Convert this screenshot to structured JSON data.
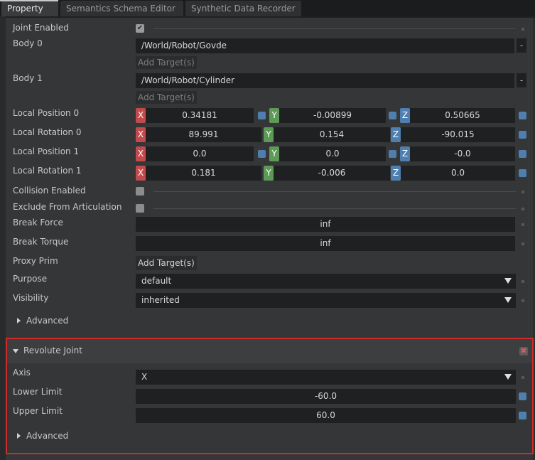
{
  "tabs": [
    {
      "label": "Property"
    },
    {
      "label": "Semantics Schema Editor"
    },
    {
      "label": "Synthetic Data Recorder"
    }
  ],
  "joint": {
    "joint_enabled_label": "Joint Enabled",
    "joint_enabled_checked": "✔",
    "body0_label": "Body 0",
    "body0_value": "/World/Robot/Govde",
    "body1_label": "Body 1",
    "body1_value": "/World/Robot/Cylinder",
    "add_target": "Add Target(s)",
    "remove_btn": "-",
    "local_position_0_label": "Local Position 0",
    "local_position_0": {
      "x": "0.34181",
      "y": "-0.00899",
      "z": "0.50665"
    },
    "local_rotation_0_label": "Local Rotation 0",
    "local_rotation_0": {
      "x": "89.991",
      "y": "0.154",
      "z": "-90.015"
    },
    "local_position_1_label": "Local Position 1",
    "local_position_1": {
      "x": "0.0",
      "y": "0.0",
      "z": "-0.0"
    },
    "local_rotation_1_label": "Local Rotation 1",
    "local_rotation_1": {
      "x": "0.181",
      "y": "-0.006",
      "z": "0.0"
    },
    "axis_x": "X",
    "axis_y": "Y",
    "axis_z": "Z",
    "collision_enabled_label": "Collision Enabled",
    "exclude_articulation_label": "Exclude From Articulation",
    "break_force_label": "Break Force",
    "break_force": "inf",
    "break_torque_label": "Break Torque",
    "break_torque": "inf",
    "proxy_prim_label": "Proxy Prim",
    "proxy_prim_add": "Add Target(s)",
    "purpose_label": "Purpose",
    "purpose_value": "default",
    "visibility_label": "Visibility",
    "visibility_value": "inherited",
    "advanced_label": "Advanced"
  },
  "revolute": {
    "title": "Revolute Joint",
    "remove_icon": "✖",
    "axis_label": "Axis",
    "axis_value": "X",
    "lower_limit_label": "Lower Limit",
    "lower_limit": "-60.0",
    "upper_limit_label": "Upper Limit",
    "upper_limit": "60.0",
    "advanced_label": "Advanced"
  },
  "colors": {
    "accent_red": "#d02a2a",
    "axis_x": "#c24a4c",
    "axis_y": "#5c9a55",
    "axis_z": "#4f7fb0"
  }
}
